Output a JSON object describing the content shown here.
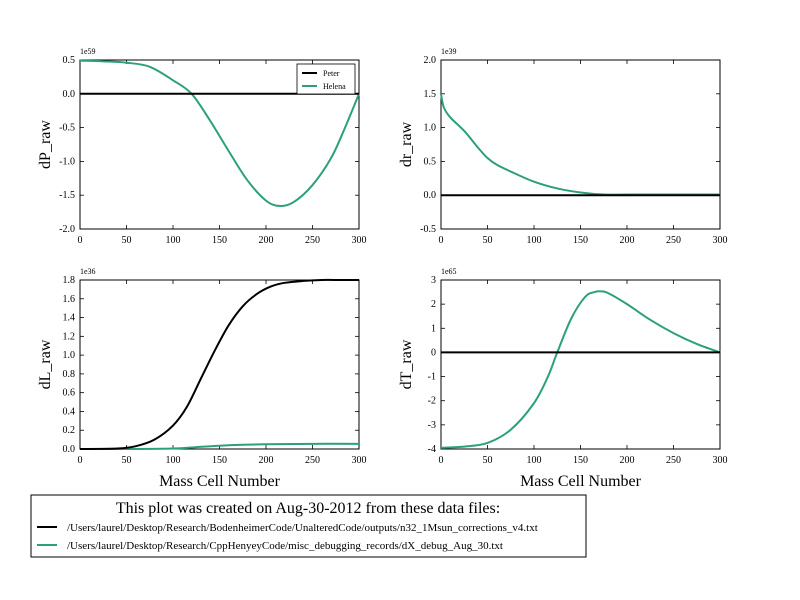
{
  "chart_data": [
    {
      "type": "line",
      "ylabel": "dP_raw",
      "xlabel": "",
      "exponent": "1e59",
      "xlim": [
        0,
        300
      ],
      "ylim": [
        -2.0,
        0.5
      ],
      "xticks": [
        0,
        50,
        100,
        150,
        200,
        250,
        300
      ],
      "yticks": [
        -2.0,
        -1.5,
        -1.0,
        -0.5,
        0.0,
        0.5
      ],
      "legend": {
        "position": "top-right",
        "entries": [
          "Peter",
          "Helena"
        ]
      },
      "series": [
        {
          "name": "Peter",
          "color": "#000000",
          "x": [
            0,
            300
          ],
          "y": [
            0.0,
            0.0
          ]
        },
        {
          "name": "Helena",
          "color": "#2ca07a",
          "x": [
            0,
            25,
            50,
            75,
            100,
            120,
            140,
            160,
            180,
            200,
            215,
            230,
            250,
            270,
            285,
            300
          ],
          "y": [
            0.49,
            0.48,
            0.46,
            0.4,
            0.2,
            0.0,
            -0.4,
            -0.85,
            -1.28,
            -1.58,
            -1.66,
            -1.6,
            -1.35,
            -0.95,
            -0.5,
            0.0
          ]
        }
      ]
    },
    {
      "type": "line",
      "ylabel": "dr_raw",
      "xlabel": "",
      "exponent": "1e39",
      "xlim": [
        0,
        300
      ],
      "ylim": [
        -0.5,
        2.0
      ],
      "xticks": [
        0,
        50,
        100,
        150,
        200,
        250,
        300
      ],
      "yticks": [
        -0.5,
        0.0,
        0.5,
        1.0,
        1.5,
        2.0
      ],
      "series": [
        {
          "name": "Peter",
          "color": "#000000",
          "x": [
            0,
            300
          ],
          "y": [
            0.0,
            0.0
          ]
        },
        {
          "name": "Helena",
          "color": "#2ca07a",
          "x": [
            0,
            3,
            10,
            25,
            40,
            50,
            60,
            75,
            100,
            125,
            150,
            175,
            200,
            250,
            300
          ],
          "y": [
            1.5,
            1.3,
            1.15,
            0.95,
            0.7,
            0.55,
            0.45,
            0.35,
            0.2,
            0.1,
            0.04,
            0.01,
            0.01,
            0.01,
            0.01
          ]
        }
      ]
    },
    {
      "type": "line",
      "ylabel": "dL_raw",
      "xlabel": "Mass Cell Number",
      "exponent": "1e36",
      "xlim": [
        0,
        300
      ],
      "ylim": [
        0.0,
        1.8
      ],
      "xticks": [
        0,
        50,
        100,
        150,
        200,
        250,
        300
      ],
      "yticks": [
        0.0,
        0.2,
        0.4,
        0.6,
        0.8,
        1.0,
        1.2,
        1.4,
        1.6,
        1.8
      ],
      "series": [
        {
          "name": "Peter",
          "color": "#000000",
          "x": [
            0,
            40,
            60,
            80,
            100,
            115,
            130,
            145,
            160,
            175,
            190,
            205,
            220,
            240,
            260,
            280,
            300
          ],
          "y": [
            0.0,
            0.005,
            0.03,
            0.1,
            0.25,
            0.45,
            0.75,
            1.05,
            1.32,
            1.52,
            1.65,
            1.73,
            1.77,
            1.79,
            1.8,
            1.8,
            1.8
          ]
        },
        {
          "name": "Helena",
          "color": "#2ca07a",
          "x": [
            0,
            50,
            100,
            125,
            150,
            175,
            200,
            250,
            300
          ],
          "y": [
            0.0,
            0.0,
            0.005,
            0.02,
            0.035,
            0.045,
            0.05,
            0.055,
            0.055
          ]
        }
      ]
    },
    {
      "type": "line",
      "ylabel": "dT_raw",
      "xlabel": "Mass Cell Number",
      "exponent": "1e65",
      "xlim": [
        0,
        300
      ],
      "ylim": [
        -4,
        3
      ],
      "xticks": [
        0,
        50,
        100,
        150,
        200,
        250,
        300
      ],
      "yticks": [
        -4,
        -3,
        -2,
        -1,
        0,
        1,
        2,
        3
      ],
      "series": [
        {
          "name": "Peter",
          "color": "#000000",
          "x": [
            0,
            300
          ],
          "y": [
            0,
            0
          ]
        },
        {
          "name": "Helena",
          "color": "#2ca07a",
          "x": [
            0,
            25,
            50,
            75,
            100,
            115,
            125,
            140,
            155,
            165,
            172,
            180,
            200,
            225,
            250,
            275,
            300
          ],
          "y": [
            -3.95,
            -3.9,
            -3.75,
            -3.2,
            -2.1,
            -1.0,
            0.0,
            1.4,
            2.3,
            2.5,
            2.53,
            2.45,
            2.0,
            1.35,
            0.8,
            0.35,
            0.0
          ]
        }
      ]
    }
  ],
  "footnote": {
    "title": "This plot was created on Aug-30-2012 from these data files:",
    "entries": [
      {
        "color": "#000000",
        "text": "/Users/laurel/Desktop/Research/BodenheimerCode/UnalteredCode/outputs/n32_1Msun_corrections_v4.txt"
      },
      {
        "color": "#2ca07a",
        "text": "/Users/laurel/Desktop/Research/CppHenyeyCode/misc_debugging_records/dX_debug_Aug_30.txt"
      }
    ]
  }
}
